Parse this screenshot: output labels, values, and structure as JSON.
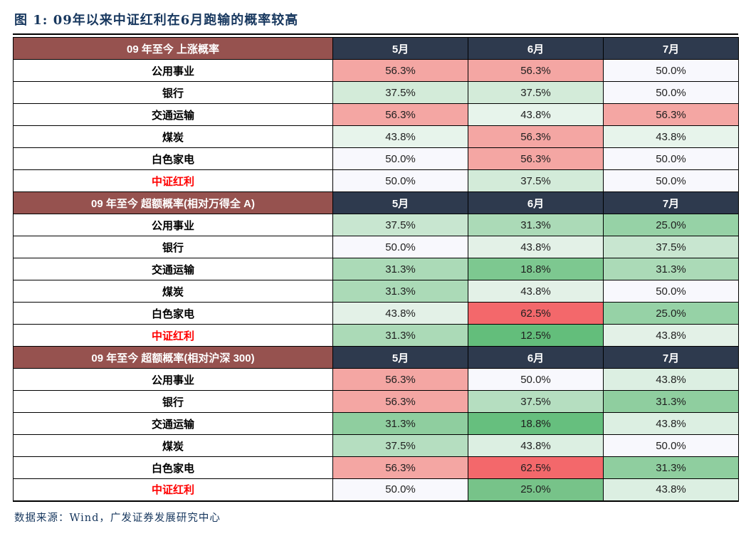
{
  "colors": {
    "section_header_bg": "#96524F",
    "month_header_bg": "#2E3A4E",
    "header_text": "#FFFFFF",
    "title_text": "#17375E",
    "source_text": "#17375E",
    "highlight_row_text": "#FF0000",
    "border": "#000000",
    "neutral_50pct_bg": "#F8F8FD",
    "scale_low_green": "#63BE7B",
    "scale_high_red": "#F3686B"
  },
  "chart_data": {
    "type": "heatmap-table",
    "title": "图 1: 09年以来中证红利在6月跑输的概率较高",
    "source_note": "数据来源：Wind，广发证券发展研究中心",
    "columns": [
      "5月",
      "6月",
      "7月"
    ],
    "value_unit": "percent",
    "color_scale_note": "conditional format: green = low probability, white = 50%, red/pink = high probability",
    "sections": [
      {
        "header": "09 年至今 上涨概率",
        "rows": [
          {
            "label": "公用事业",
            "highlight": false,
            "values": [
              56.3,
              56.3,
              50.0
            ],
            "cell_colors": [
              "#F4A6A3",
              "#F4A6A3",
              "#F8F8FD"
            ]
          },
          {
            "label": "银行",
            "highlight": false,
            "values": [
              37.5,
              37.5,
              50.0
            ],
            "cell_colors": [
              "#D3EBD9",
              "#D3EBD9",
              "#F8F8FD"
            ]
          },
          {
            "label": "交通运输",
            "highlight": false,
            "values": [
              56.3,
              43.8,
              56.3
            ],
            "cell_colors": [
              "#F4A6A3",
              "#E7F4EB",
              "#F4A6A3"
            ]
          },
          {
            "label": "煤炭",
            "highlight": false,
            "values": [
              43.8,
              56.3,
              43.8
            ],
            "cell_colors": [
              "#E7F4EB",
              "#F4A6A3",
              "#E7F4EB"
            ]
          },
          {
            "label": "白色家电",
            "highlight": false,
            "values": [
              50.0,
              56.3,
              50.0
            ],
            "cell_colors": [
              "#F8F8FD",
              "#F4A6A3",
              "#F8F8FD"
            ]
          },
          {
            "label": "中证红利",
            "highlight": true,
            "values": [
              50.0,
              37.5,
              50.0
            ],
            "cell_colors": [
              "#F8F8FD",
              "#D3EBD9",
              "#F8F8FD"
            ]
          }
        ]
      },
      {
        "header": "09 年至今 超额概率(相对万得全 A)",
        "rows": [
          {
            "label": "公用事业",
            "highlight": false,
            "values": [
              37.5,
              31.3,
              25.0
            ],
            "cell_colors": [
              "#C8E6D0",
              "#ABDAB7",
              "#96D2A6"
            ]
          },
          {
            "label": "银行",
            "highlight": false,
            "values": [
              50.0,
              43.8,
              37.5
            ],
            "cell_colors": [
              "#F8F8FD",
              "#E3F1E7",
              "#C8E6D0"
            ]
          },
          {
            "label": "交通运输",
            "highlight": false,
            "values": [
              31.3,
              18.8,
              31.3
            ],
            "cell_colors": [
              "#ABDAB7",
              "#7DC890",
              "#ABDAB7"
            ]
          },
          {
            "label": "煤炭",
            "highlight": false,
            "values": [
              31.3,
              43.8,
              50.0
            ],
            "cell_colors": [
              "#ABDAB7",
              "#E3F1E7",
              "#F8F8FD"
            ]
          },
          {
            "label": "白色家电",
            "highlight": false,
            "values": [
              43.8,
              62.5,
              25.0
            ],
            "cell_colors": [
              "#E3F1E7",
              "#F3686B",
              "#96D2A6"
            ]
          },
          {
            "label": "中证红利",
            "highlight": true,
            "values": [
              31.3,
              12.5,
              43.8
            ],
            "cell_colors": [
              "#ABDAB7",
              "#63BE7B",
              "#E3F1E7"
            ]
          }
        ]
      },
      {
        "header": "09 年至今 超额概率(相对沪深 300)",
        "rows": [
          {
            "label": "公用事业",
            "highlight": false,
            "values": [
              56.3,
              50.0,
              43.8
            ],
            "cell_colors": [
              "#F4A6A3",
              "#F8F8FD",
              "#DCEFE2"
            ]
          },
          {
            "label": "银行",
            "highlight": false,
            "values": [
              56.3,
              37.5,
              31.3
            ],
            "cell_colors": [
              "#F4A6A3",
              "#B5DEC0",
              "#8FCE9F"
            ]
          },
          {
            "label": "交通运输",
            "highlight": false,
            "values": [
              31.3,
              18.8,
              43.8
            ],
            "cell_colors": [
              "#8FCE9F",
              "#66BF7E",
              "#DCEFE2"
            ]
          },
          {
            "label": "煤炭",
            "highlight": false,
            "values": [
              37.5,
              43.8,
              50.0
            ],
            "cell_colors": [
              "#B5DEC0",
              "#DCEFE2",
              "#F8F8FD"
            ]
          },
          {
            "label": "白色家电",
            "highlight": false,
            "values": [
              56.3,
              62.5,
              31.3
            ],
            "cell_colors": [
              "#F4A6A3",
              "#F3686B",
              "#8FCE9F"
            ]
          },
          {
            "label": "中证红利",
            "highlight": true,
            "values": [
              50.0,
              25.0,
              43.8
            ],
            "cell_colors": [
              "#F8F8FD",
              "#77C389",
              "#DCEFE2"
            ]
          }
        ]
      }
    ]
  }
}
